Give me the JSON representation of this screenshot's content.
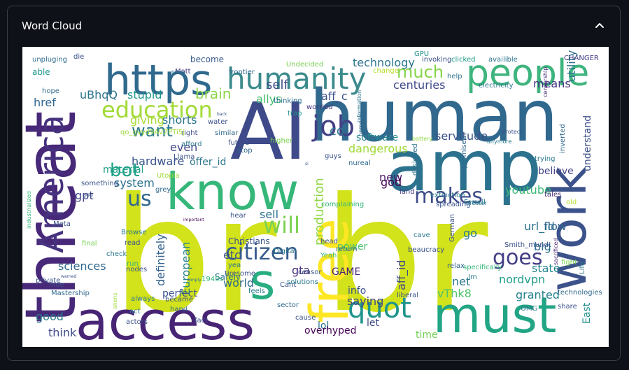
{
  "panel": {
    "title": "Word Cloud",
    "collapse_icon": "chevron-up-icon"
  },
  "word_cloud": {
    "background": "#ffffff",
    "palette": [
      "#440154",
      "#3b528b",
      "#21908d",
      "#5dc963",
      "#fde725"
    ],
    "words": [
      {
        "text": "br",
        "color": "#d2e21b"
      },
      {
        "text": "br",
        "color": "#d2e21b"
      },
      {
        "text": "AI",
        "color": "#3e4a89"
      },
      {
        "text": "human",
        "color": "#31688e"
      },
      {
        "text": "amp",
        "color": "#2c728e"
      },
      {
        "text": "know",
        "color": "#35b779"
      },
      {
        "text": "threat",
        "color": "#482878"
      },
      {
        "text": "access",
        "color": "#482475"
      },
      {
        "text": "must",
        "color": "#21a585"
      },
      {
        "text": "work",
        "color": "#3b528b"
      },
      {
        "text": "free",
        "color": "#fde725"
      },
      {
        "text": "https",
        "color": "#30698e"
      },
      {
        "text": "people",
        "color": "#3eb47e"
      },
      {
        "text": "s",
        "color": "#27ad81"
      },
      {
        "text": "America",
        "color": "#46327e"
      },
      {
        "text": "humanity",
        "color": "#3b8a8c"
      },
      {
        "text": "education",
        "color": "#a2da37"
      },
      {
        "text": "job",
        "color": "#423f85"
      },
      {
        "text": "quot",
        "color": "#1f948c"
      },
      {
        "text": "citizen",
        "color": "#365c8d"
      },
      {
        "text": "us",
        "color": "#31678e"
      },
      {
        "text": "makes",
        "color": "#3e4c8a"
      },
      {
        "text": "want",
        "color": "#2a788e"
      },
      {
        "text": "much",
        "color": "#86d549"
      },
      {
        "text": "will",
        "color": "#7ad151"
      },
      {
        "text": "goes",
        "color": "#433e85"
      },
      {
        "text": "bot",
        "color": "#1fa187"
      },
      {
        "text": "technology",
        "color": "#2b758e"
      },
      {
        "text": "centuries",
        "color": "#3f4889"
      },
      {
        "text": "self",
        "color": "#3d4d8a"
      },
      {
        "text": "brain",
        "color": "#8bd646"
      },
      {
        "text": "giving",
        "color": "#a8db34"
      },
      {
        "text": "shorts",
        "color": "#2a768e"
      },
      {
        "text": "stupid",
        "color": "#1f978b"
      },
      {
        "text": "uBhqQ",
        "color": "#2c738e"
      },
      {
        "text": "href",
        "color": "#31668e"
      },
      {
        "text": "allys",
        "color": "#46c06f"
      },
      {
        "text": "aff_c",
        "color": "#3b528b"
      },
      {
        "text": "co",
        "color": "#2b748e"
      },
      {
        "text": "means",
        "color": "#453581"
      },
      {
        "text": "utility",
        "color": "#2d708e"
      },
      {
        "text": "servitude",
        "color": "#3b528b"
      },
      {
        "text": "software",
        "color": "#24868e"
      },
      {
        "text": "dangerous",
        "color": "#a0da39"
      },
      {
        "text": "understand",
        "color": "#3c4f8a"
      },
      {
        "text": "even",
        "color": "#414487"
      },
      {
        "text": "offer_id",
        "color": "#2a778e"
      },
      {
        "text": "hardware",
        "color": "#3a548c"
      },
      {
        "text": "material",
        "color": "#1fa088"
      },
      {
        "text": "system",
        "color": "#2c728e"
      },
      {
        "text": "gpt",
        "color": "#3f4788"
      },
      {
        "text": "believe",
        "color": "#414287"
      },
      {
        "text": "new",
        "color": "#48186a"
      },
      {
        "text": "god",
        "color": "#440154"
      },
      {
        "text": "production",
        "color": "#8fd744"
      },
      {
        "text": "sell",
        "color": "#2d718e"
      },
      {
        "text": "youtube",
        "color": "#3aba76"
      },
      {
        "text": "flow",
        "color": "#32648e"
      },
      {
        "text": "url_id",
        "color": "#2d718e"
      },
      {
        "text": "big",
        "color": "#2e6e8e"
      },
      {
        "text": "go",
        "color": "#287c8e"
      },
      {
        "text": "power",
        "color": "#4ac16d"
      },
      {
        "text": "European",
        "color": "#26828e"
      },
      {
        "text": "definitely",
        "color": "#33628d"
      },
      {
        "text": "sciences",
        "color": "#30698e"
      },
      {
        "text": "world",
        "color": "#2f6b8e"
      },
      {
        "text": "etc",
        "color": "#3b528b"
      },
      {
        "text": "gta",
        "color": "#472d7b"
      },
      {
        "text": "GAME",
        "color": "#482576"
      },
      {
        "text": "info",
        "color": "#3b528b"
      },
      {
        "text": "aff_id",
        "color": "#3e4989"
      },
      {
        "text": "state",
        "color": "#24868e"
      },
      {
        "text": "nordvpn",
        "color": "#1f9e89"
      },
      {
        "text": "vThk8",
        "color": "#4ec36b"
      },
      {
        "text": "granted",
        "color": "#26818e"
      },
      {
        "text": "net",
        "color": "#2a778e"
      },
      {
        "text": "saying",
        "color": "#3f4788"
      },
      {
        "text": "perfect",
        "color": "#3b528b"
      },
      {
        "text": "good",
        "color": "#2a788e"
      },
      {
        "text": "think",
        "color": "#3e4a89"
      },
      {
        "text": "lol",
        "color": "#2c728e"
      },
      {
        "text": "let",
        "color": "#3f4889"
      },
      {
        "text": "time",
        "color": "#74d055"
      },
      {
        "text": "overhyped",
        "color": "#440154"
      },
      {
        "text": "Christians",
        "color": "#3b528b"
      },
      {
        "text": "Safely",
        "color": "#2c728e"
      },
      {
        "text": "East",
        "color": "#21918c"
      },
      {
        "text": "become",
        "color": "#38598c"
      },
      {
        "text": "Matt",
        "color": "#443983"
      },
      {
        "text": "unpluging",
        "color": "#2f6c8e"
      },
      {
        "text": "die",
        "color": "#3b528b"
      },
      {
        "text": "able",
        "color": "#1f988b"
      },
      {
        "text": "hope",
        "color": "#2f6c8e"
      },
      {
        "text": "frontier",
        "color": "#30698e"
      },
      {
        "text": "Undecided",
        "color": "#7ad151"
      },
      {
        "text": "invoking",
        "color": "#3b528b"
      },
      {
        "text": "clicked",
        "color": "#1e9b8a"
      },
      {
        "text": "availible",
        "color": "#2b748e"
      },
      {
        "text": "CHANGER",
        "color": "#433e85"
      },
      {
        "text": "GPU",
        "color": "#21918c"
      },
      {
        "text": "change",
        "color": "#b5de2b"
      },
      {
        "text": "help",
        "color": "#2c728e"
      },
      {
        "text": "electricity",
        "color": "#2a788e"
      },
      {
        "text": "censorship",
        "color": "#482878"
      },
      {
        "text": "worried",
        "color": "#46327e"
      },
      {
        "text": "information",
        "color": "#2a778e"
      },
      {
        "text": "thinking",
        "color": "#2d708e"
      },
      {
        "text": "trap",
        "color": "#21918c"
      },
      {
        "text": "water",
        "color": "#3b528b"
      },
      {
        "text": "similar",
        "color": "#31688e"
      },
      {
        "text": "higher",
        "color": "#7ad151"
      },
      {
        "text": "personal",
        "color": "#31688e"
      },
      {
        "text": "battery",
        "color": "#90d743"
      },
      {
        "text": "anymore",
        "color": "#2a788e"
      },
      {
        "text": "Protect",
        "color": "#3b528b"
      },
      {
        "text": "inverted",
        "color": "#31688e"
      },
      {
        "text": "trying",
        "color": "#2a788e"
      },
      {
        "text": "future",
        "color": "#3b528b"
      },
      {
        "text": "stop",
        "color": "#31688e"
      },
      {
        "text": "right",
        "color": "#3e4a89"
      },
      {
        "text": "afford",
        "color": "#2a788e"
      },
      {
        "text": "Llama",
        "color": "#3b528b"
      },
      {
        "text": "guys",
        "color": "#3b528b"
      },
      {
        "text": "nureal",
        "color": "#31688e"
      },
      {
        "text": "designed",
        "color": "#2c728e"
      },
      {
        "text": "land",
        "color": "#433e85"
      },
      {
        "text": "extinction",
        "color": "#2a788e"
      },
      {
        "text": "compromised",
        "color": "#31688e"
      },
      {
        "text": "something",
        "color": "#3b528b"
      },
      {
        "text": "Utopia",
        "color": "#a0da39"
      },
      {
        "text": "goo",
        "color": "#3b528b"
      },
      {
        "text": "complaining",
        "color": "#35b779"
      },
      {
        "text": "spreading",
        "color": "#3b528b"
      },
      {
        "text": "Ferrell",
        "color": "#2a788e"
      },
      {
        "text": "tales",
        "color": "#482878"
      },
      {
        "text": "old",
        "color": "#b5de2b"
      },
      {
        "text": "Greater",
        "color": "#2a788e"
      },
      {
        "text": "industrialized",
        "color": "#35b779"
      },
      {
        "text": "grey",
        "color": "#31688e"
      },
      {
        "text": "important",
        "color": "#440154"
      },
      {
        "text": "Meta",
        "color": "#3b528b"
      },
      {
        "text": "Browse",
        "color": "#2a788e"
      },
      {
        "text": "read",
        "color": "#3b528b"
      },
      {
        "text": "final",
        "color": "#7ad151"
      },
      {
        "text": "check",
        "color": "#2a788e"
      },
      {
        "text": "nodes",
        "color": "#3b528b"
      },
      {
        "text": "run",
        "color": "#35b779"
      },
      {
        "text": "hear",
        "color": "#3b528b"
      },
      {
        "text": "Digital",
        "color": "#2a788e"
      },
      {
        "text": "head",
        "color": "#3b528b"
      },
      {
        "text": "return",
        "color": "#31688e"
      },
      {
        "text": "Yeah",
        "color": "#35b779"
      },
      {
        "text": "beaucracy",
        "color": "#3b528b"
      },
      {
        "text": "cave",
        "color": "#2a788e"
      },
      {
        "text": "specifically",
        "color": "#35b779"
      },
      {
        "text": "German",
        "color": "#3b528b"
      },
      {
        "text": "relax",
        "color": "#31688e"
      },
      {
        "text": "Im",
        "color": "#2a788e"
      },
      {
        "text": "Smith_mundt",
        "color": "#3b528b"
      },
      {
        "text": "sacrificed",
        "color": "#482878"
      },
      {
        "text": "fight",
        "color": "#7ad151"
      },
      {
        "text": "Life",
        "color": "#2a788e"
      },
      {
        "text": "private",
        "color": "#3b528b"
      },
      {
        "text": "hide",
        "color": "#3b528b"
      },
      {
        "text": "Mastership",
        "color": "#31688e"
      },
      {
        "text": "aliens",
        "color": "#a0da39"
      },
      {
        "text": "act",
        "color": "#2a788e"
      },
      {
        "text": "actors",
        "color": "#3b528b"
      },
      {
        "text": "always",
        "color": "#2a788e"
      },
      {
        "text": "became",
        "color": "#3b528b"
      },
      {
        "text": "hand",
        "color": "#31688e"
      },
      {
        "text": "fact",
        "color": "#3b528b"
      },
      {
        "text": "feels",
        "color": "#2a788e"
      },
      {
        "text": "sector",
        "color": "#31688e"
      },
      {
        "text": "cause",
        "color": "#3b528b"
      },
      {
        "text": "yea",
        "color": "#2a788e"
      },
      {
        "text": "tiresome",
        "color": "#3b528b"
      },
      {
        "text": "1945s",
        "color": "#35b779"
      },
      {
        "text": "Cant",
        "color": "#3b528b"
      },
      {
        "text": "solutions",
        "color": "#2a788e"
      },
      {
        "text": "censor",
        "color": "#3b528b"
      },
      {
        "text": "liberal",
        "color": "#3b528b"
      },
      {
        "text": "OMG",
        "color": "#2a788e"
      },
      {
        "text": "share",
        "color": "#3b528b"
      },
      {
        "text": "technologies",
        "color": "#31688e"
      },
      {
        "text": "simply",
        "color": "#2a788e"
      },
      {
        "text": "warned",
        "color": "#3b528b"
      },
      {
        "text": "debate",
        "color": "#2a788e"
      },
      {
        "text": "back",
        "color": "#3b528b"
      },
      {
        "text": "si",
        "color": "#3b528b"
      },
      {
        "text": "qo_gvyd9AVZPTi5j",
        "color": "#a0da39"
      }
    ]
  }
}
